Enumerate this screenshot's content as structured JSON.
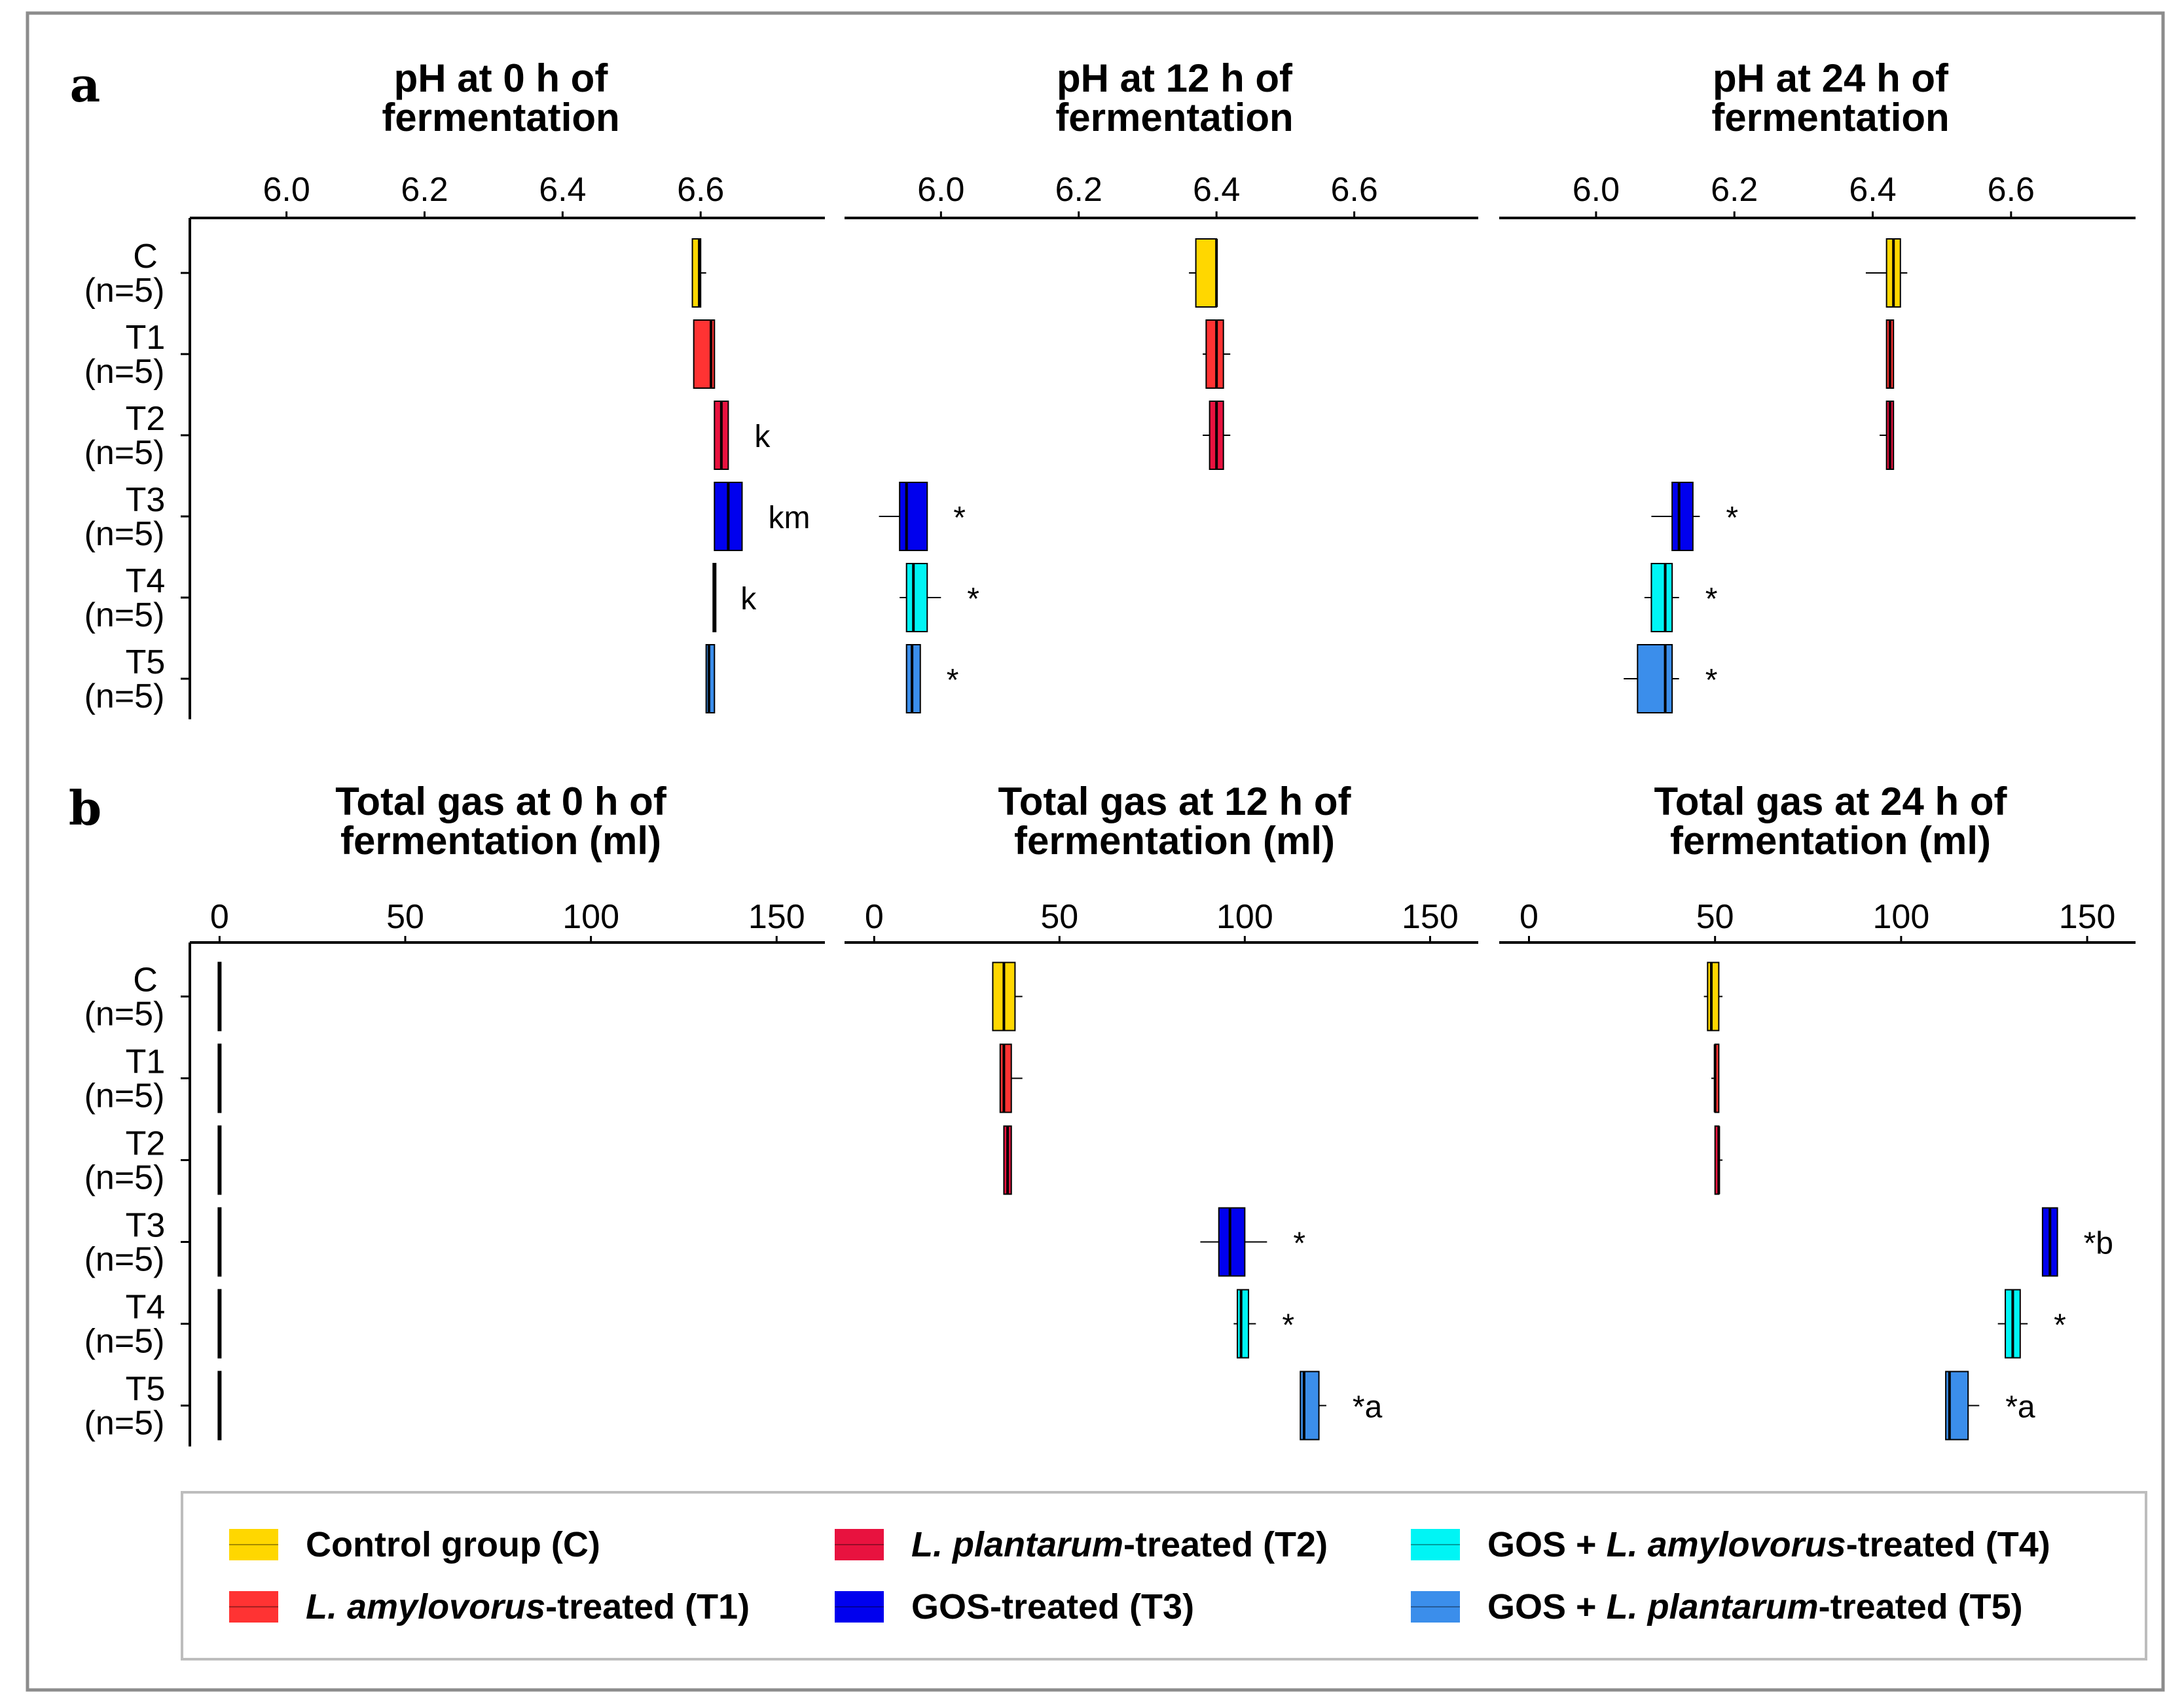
{
  "figure": {
    "groups": [
      "C",
      "T1",
      "T2",
      "T3",
      "T4",
      "T5"
    ],
    "n_label": "(n=5)",
    "colors": {
      "C": "#FFD700",
      "T1": "#FF3333",
      "T2": "#E8123F",
      "T3": "#0000EE",
      "T4": "#00F5F5",
      "T5": "#3B8EEB"
    },
    "frame_color": "#8C8C8C",
    "legend": [
      {
        "group": "C",
        "plain_before": "Control group (C)",
        "italic": "",
        "plain_after": ""
      },
      {
        "group": "T1",
        "plain_before": "",
        "italic": "L. amylovorus",
        "plain_after": "-treated (T1)"
      },
      {
        "group": "T2",
        "plain_before": "",
        "italic": "L. plantarum",
        "plain_after": "-treated (T2)"
      },
      {
        "group": "T3",
        "plain_before": "GOS-treated (T3)",
        "italic": "",
        "plain_after": ""
      },
      {
        "group": "T4",
        "plain_before": "GOS + ",
        "italic": "L. amylovorus",
        "plain_after": "-treated (T4)"
      },
      {
        "group": "T5",
        "plain_before": "GOS + ",
        "italic": "L. plantarum",
        "plain_after": "-treated (T5)"
      }
    ]
  },
  "chart_data": [
    {
      "panel": "a",
      "title": [
        "pH at 0 h of",
        "fermentation"
      ],
      "type": "box",
      "xlim": [
        5.86,
        6.78
      ],
      "ticks": [
        6.0,
        6.2,
        6.4,
        6.6
      ],
      "tick_labels": [
        "6.0",
        "6.2",
        "6.4",
        "6.6"
      ],
      "boxes": [
        {
          "group": "C",
          "min": 6.588,
          "q1": 6.588,
          "median": 6.598,
          "q3": 6.6,
          "max": 6.608,
          "annot": ""
        },
        {
          "group": "T1",
          "min": 6.59,
          "q1": 6.59,
          "median": 6.615,
          "q3": 6.62,
          "max": 6.62,
          "annot": ""
        },
        {
          "group": "T2",
          "min": 6.62,
          "q1": 6.62,
          "median": 6.63,
          "q3": 6.64,
          "max": 6.64,
          "annot": "k"
        },
        {
          "group": "T3",
          "min": 6.62,
          "q1": 6.62,
          "median": 6.64,
          "q3": 6.66,
          "max": 6.66,
          "annot": "km"
        },
        {
          "group": "T4",
          "min": 6.62,
          "q1": 6.62,
          "median": 6.62,
          "q3": 6.62,
          "max": 6.62,
          "annot": "k"
        },
        {
          "group": "T5",
          "min": 6.608,
          "q1": 6.608,
          "median": 6.612,
          "q3": 6.62,
          "max": 6.62,
          "annot": ""
        }
      ]
    },
    {
      "panel": "a",
      "title": [
        "pH at 12 h of",
        "fermentation"
      ],
      "type": "box",
      "xlim": [
        5.86,
        6.78
      ],
      "ticks": [
        6.0,
        6.2,
        6.4,
        6.6
      ],
      "tick_labels": [
        "6.0",
        "6.2",
        "6.4",
        "6.6"
      ],
      "boxes": [
        {
          "group": "C",
          "min": 6.36,
          "q1": 6.37,
          "median": 6.4,
          "q3": 6.4,
          "max": 6.4,
          "annot": ""
        },
        {
          "group": "T1",
          "min": 6.38,
          "q1": 6.385,
          "median": 6.4,
          "q3": 6.41,
          "max": 6.42,
          "annot": ""
        },
        {
          "group": "T2",
          "min": 6.38,
          "q1": 6.39,
          "median": 6.4,
          "q3": 6.41,
          "max": 6.42,
          "annot": ""
        },
        {
          "group": "T3",
          "min": 5.91,
          "q1": 5.94,
          "median": 5.95,
          "q3": 5.98,
          "max": 5.98,
          "annot": "*"
        },
        {
          "group": "T4",
          "min": 5.94,
          "q1": 5.95,
          "median": 5.96,
          "q3": 5.98,
          "max": 6.0,
          "annot": "*"
        },
        {
          "group": "T5",
          "min": 5.95,
          "q1": 5.95,
          "median": 5.958,
          "q3": 5.97,
          "max": 5.97,
          "annot": "*"
        }
      ]
    },
    {
      "panel": "a",
      "title": [
        "pH at 24 h of",
        "fermentation"
      ],
      "type": "box",
      "xlim": [
        5.86,
        6.78
      ],
      "ticks": [
        6.0,
        6.2,
        6.4,
        6.6
      ],
      "tick_labels": [
        "6.0",
        "6.2",
        "6.4",
        "6.6"
      ],
      "boxes": [
        {
          "group": "C",
          "min": 6.39,
          "q1": 6.42,
          "median": 6.43,
          "q3": 6.44,
          "max": 6.45,
          "annot": ""
        },
        {
          "group": "T1",
          "min": 6.42,
          "q1": 6.42,
          "median": 6.425,
          "q3": 6.43,
          "max": 6.43,
          "annot": ""
        },
        {
          "group": "T2",
          "min": 6.41,
          "q1": 6.42,
          "median": 6.425,
          "q3": 6.43,
          "max": 6.43,
          "annot": ""
        },
        {
          "group": "T3",
          "min": 6.08,
          "q1": 6.11,
          "median": 6.12,
          "q3": 6.14,
          "max": 6.15,
          "annot": "*"
        },
        {
          "group": "T4",
          "min": 6.07,
          "q1": 6.08,
          "median": 6.1,
          "q3": 6.11,
          "max": 6.12,
          "annot": "*"
        },
        {
          "group": "T5",
          "min": 6.04,
          "q1": 6.06,
          "median": 6.1,
          "q3": 6.11,
          "max": 6.12,
          "annot": "*"
        }
      ]
    },
    {
      "panel": "b",
      "title": [
        "Total gas at 0 h of",
        "fermentation (ml)"
      ],
      "type": "box",
      "xlim": [
        -8,
        163
      ],
      "ticks": [
        0,
        50,
        100,
        150
      ],
      "tick_labels": [
        "0",
        "50",
        "100",
        "150"
      ],
      "boxes": [
        {
          "group": "C",
          "min": 0,
          "q1": 0,
          "median": 0,
          "q3": 0,
          "max": 0,
          "annot": ""
        },
        {
          "group": "T1",
          "min": 0,
          "q1": 0,
          "median": 0,
          "q3": 0,
          "max": 0,
          "annot": ""
        },
        {
          "group": "T2",
          "min": 0,
          "q1": 0,
          "median": 0,
          "q3": 0,
          "max": 0,
          "annot": ""
        },
        {
          "group": "T3",
          "min": 0,
          "q1": 0,
          "median": 0,
          "q3": 0,
          "max": 0,
          "annot": ""
        },
        {
          "group": "T4",
          "min": 0,
          "q1": 0,
          "median": 0,
          "q3": 0,
          "max": 0,
          "annot": ""
        },
        {
          "group": "T5",
          "min": 0,
          "q1": 0,
          "median": 0,
          "q3": 0,
          "max": 0,
          "annot": ""
        }
      ]
    },
    {
      "panel": "b",
      "title": [
        "Total gas at 12 h of",
        "fermentation (ml)"
      ],
      "type": "box",
      "xlim": [
        -8,
        163
      ],
      "ticks": [
        0,
        50,
        100,
        150
      ],
      "tick_labels": [
        "0",
        "50",
        "100",
        "150"
      ],
      "boxes": [
        {
          "group": "C",
          "min": 32,
          "q1": 32,
          "median": 35,
          "q3": 38,
          "max": 40,
          "annot": ""
        },
        {
          "group": "T1",
          "min": 34,
          "q1": 34,
          "median": 35,
          "q3": 37,
          "max": 40,
          "annot": ""
        },
        {
          "group": "T2",
          "min": 35,
          "q1": 35,
          "median": 36,
          "q3": 37,
          "max": 37,
          "annot": ""
        },
        {
          "group": "T3",
          "min": 88,
          "q1": 93,
          "median": 96,
          "q3": 100,
          "max": 106,
          "annot": "*"
        },
        {
          "group": "T4",
          "min": 97,
          "q1": 98,
          "median": 99,
          "q3": 101,
          "max": 103,
          "annot": "*"
        },
        {
          "group": "T5",
          "min": 115,
          "q1": 115,
          "median": 116,
          "q3": 120,
          "max": 122,
          "annot": "*a"
        }
      ]
    },
    {
      "panel": "b",
      "title": [
        "Total gas at 24 h of",
        "fermentation (ml)"
      ],
      "type": "box",
      "xlim": [
        -8,
        163
      ],
      "ticks": [
        0,
        50,
        100,
        150
      ],
      "tick_labels": [
        "0",
        "50",
        "100",
        "150"
      ],
      "boxes": [
        {
          "group": "C",
          "min": 47,
          "q1": 48,
          "median": 49,
          "q3": 51,
          "max": 52,
          "annot": ""
        },
        {
          "group": "T1",
          "min": 49,
          "q1": 50,
          "median": 50,
          "q3": 51,
          "max": 51,
          "annot": ""
        },
        {
          "group": "T2",
          "min": 50,
          "q1": 50,
          "median": 51,
          "q3": 51,
          "max": 52,
          "annot": ""
        },
        {
          "group": "T3",
          "min": 138,
          "q1": 138,
          "median": 140,
          "q3": 142,
          "max": 142,
          "annot": "*b"
        },
        {
          "group": "T4",
          "min": 126,
          "q1": 128,
          "median": 130,
          "q3": 132,
          "max": 134,
          "annot": "*"
        },
        {
          "group": "T5",
          "min": 112,
          "q1": 112,
          "median": 113,
          "q3": 118,
          "max": 121,
          "annot": "*a"
        }
      ]
    }
  ],
  "panel_labels": [
    "a",
    "b"
  ]
}
